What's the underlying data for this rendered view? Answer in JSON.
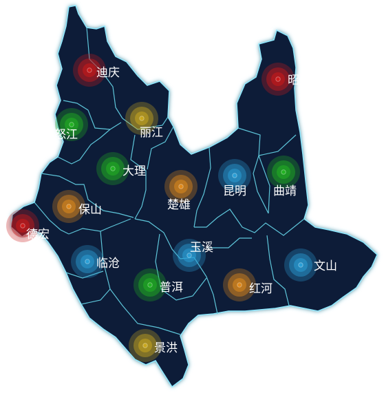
{
  "map": {
    "colors": {
      "province_fill": "#0b1c37",
      "glow": "#8fe9ff",
      "border": "#5ec6da",
      "label": "#ffffff"
    },
    "prefectures": [
      {
        "id": "diqing",
        "name": "迪庆",
        "color": "#cc1a1a"
      },
      {
        "id": "zhaotong",
        "name": "昭通",
        "color": "#cc1a1a"
      },
      {
        "id": "nujiang",
        "name": "怒江",
        "color": "#22b322"
      },
      {
        "id": "lijiang",
        "name": "丽江",
        "color": "#c9a81f"
      },
      {
        "id": "dali",
        "name": "大理",
        "color": "#22b322"
      },
      {
        "id": "chuxiong",
        "name": "楚雄",
        "color": "#e08a1c"
      },
      {
        "id": "kunming",
        "name": "昆明",
        "color": "#2a9fd6"
      },
      {
        "id": "qujing",
        "name": "曲靖",
        "color": "#22b322"
      },
      {
        "id": "baoshan",
        "name": "保山",
        "color": "#e08a1c"
      },
      {
        "id": "dehong",
        "name": "德宏",
        "color": "#cc1a1a"
      },
      {
        "id": "yuxi",
        "name": "玉溪",
        "color": "#2a9fd6"
      },
      {
        "id": "lincang",
        "name": "临沧",
        "color": "#2a9fd6"
      },
      {
        "id": "puer",
        "name": "普洱",
        "color": "#22b322"
      },
      {
        "id": "honghe",
        "name": "红河",
        "color": "#e08a1c"
      },
      {
        "id": "wenshan",
        "name": "文山",
        "color": "#2a9fd6"
      },
      {
        "id": "xishuangbanna",
        "name": "景洪",
        "color": "#c9a81f"
      }
    ]
  }
}
